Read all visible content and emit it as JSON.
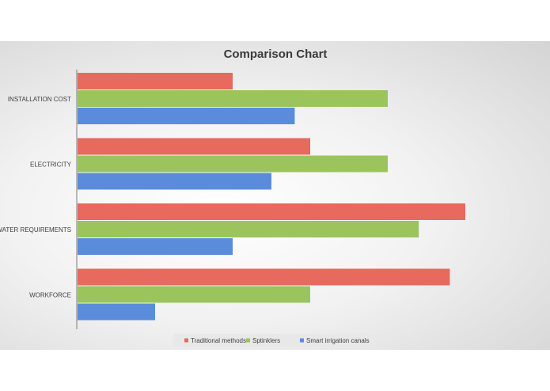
{
  "chart_data": {
    "type": "bar",
    "orientation": "horizontal",
    "title": "Comparison Chart",
    "categories": [
      "INSTALLATION COST",
      "ELECTRICITY",
      "WATER REQUIREMENTS",
      "WORKFORCE"
    ],
    "series": [
      {
        "name": "Traditional methods",
        "color": "#e8695e",
        "values": [
          2,
          3,
          5,
          4.8
        ]
      },
      {
        "name": "Sptinklers",
        "color": "#9bc55c",
        "values": [
          4,
          4,
          4.4,
          3
        ]
      },
      {
        "name": "Smart irrigation canals",
        "color": "#5b8cdc",
        "values": [
          2.8,
          2.5,
          2,
          1
        ]
      }
    ],
    "xlim": [
      0,
      6
    ],
    "grid": false,
    "legend_position": "bottom"
  }
}
